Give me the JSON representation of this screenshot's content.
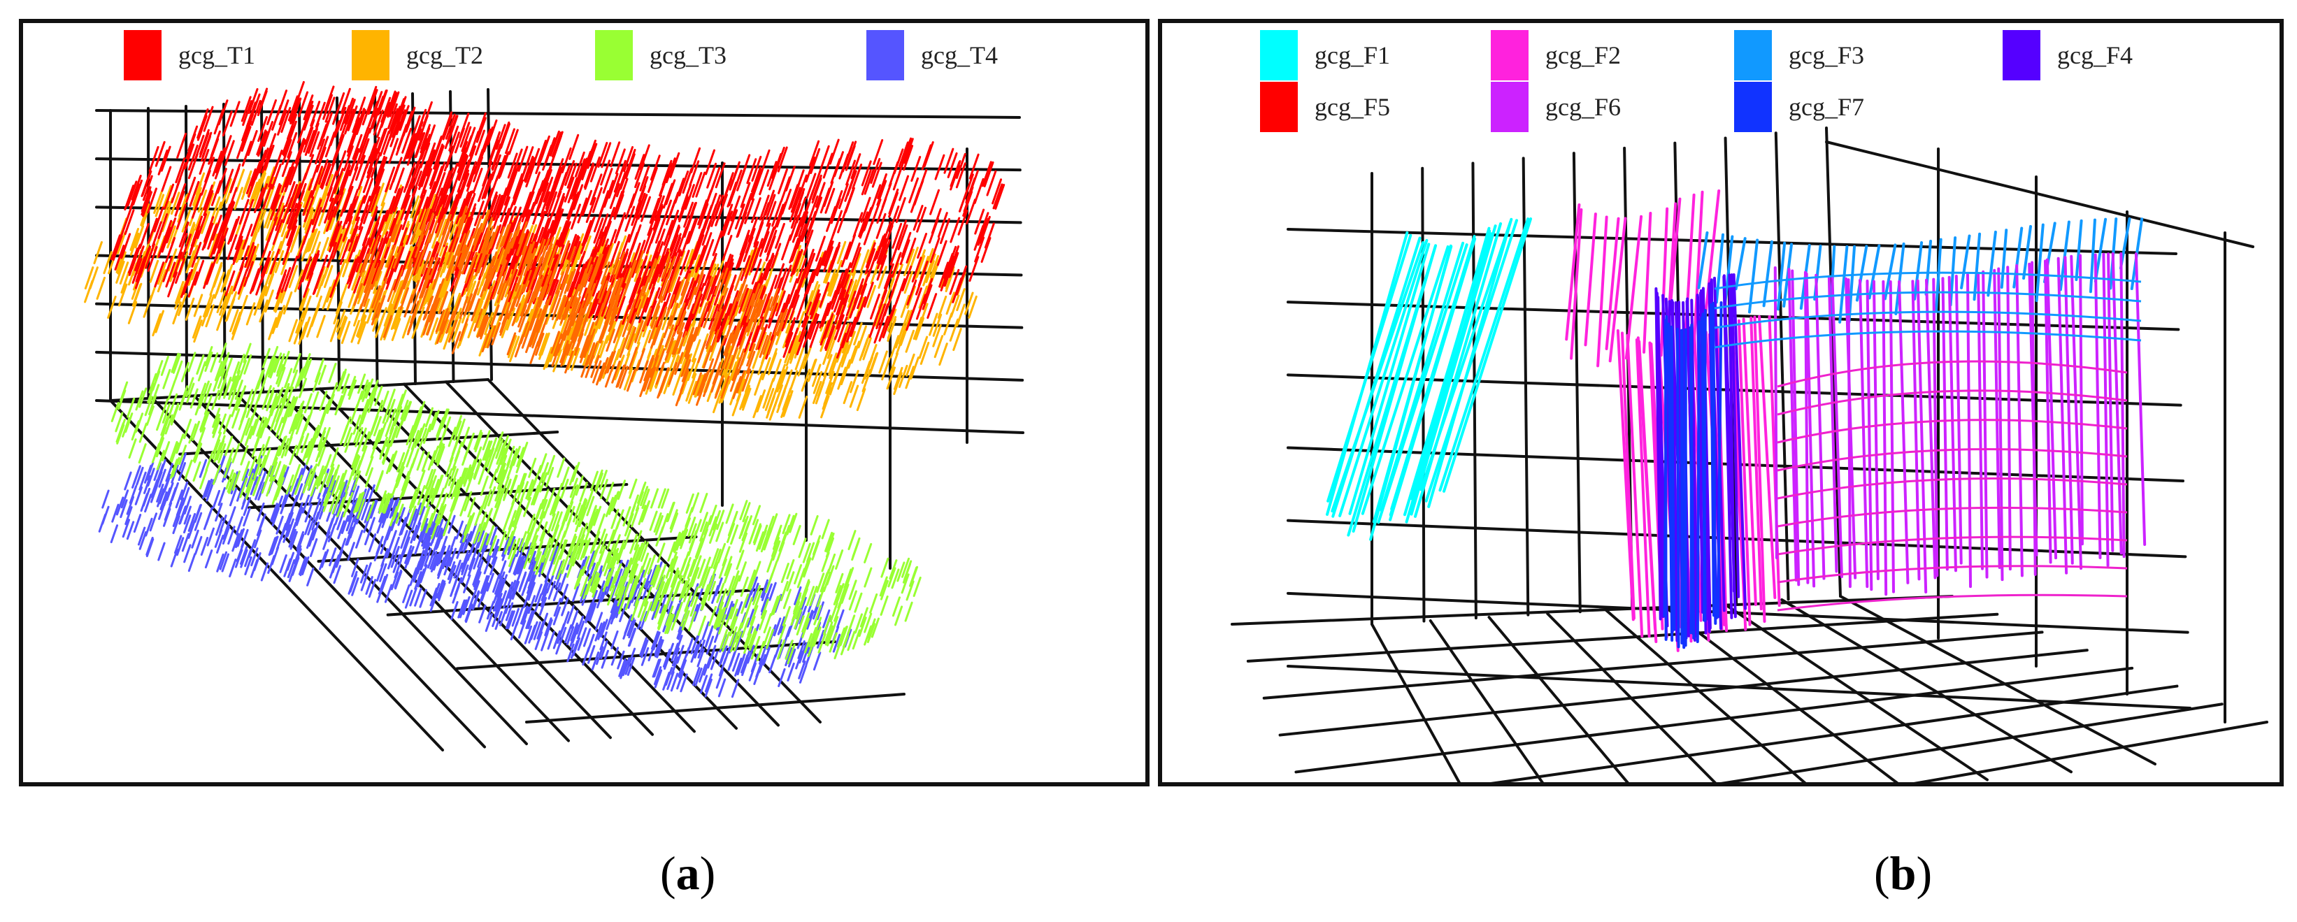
{
  "panels": [
    {
      "id": "a",
      "caption_open": "(",
      "caption_letter": "a",
      "caption_close": ")",
      "legend": [
        {
          "label": "gcg_T1",
          "color": "#ff0000"
        },
        {
          "label": "gcg_T2",
          "color": "#ffb400"
        },
        {
          "label": "gcg_T3",
          "color": "#99ff33"
        },
        {
          "label": "gcg_T4",
          "color": "#5555ff"
        }
      ]
    },
    {
      "id": "b",
      "caption_open": "(",
      "caption_letter": "b",
      "caption_close": ")",
      "legend": [
        {
          "label": "gcg_F1",
          "color": "#00ffff"
        },
        {
          "label": "gcg_F2",
          "color": "#ff22dd"
        },
        {
          "label": "gcg_F3",
          "color": "#1199ff"
        },
        {
          "label": "gcg_F4",
          "color": "#5500ff"
        },
        {
          "label": "gcg_F5",
          "color": "#ff0000"
        },
        {
          "label": "gcg_F6",
          "color": "#cc22ff"
        },
        {
          "label": "gcg_F7",
          "color": "#1133ff"
        }
      ]
    }
  ]
}
